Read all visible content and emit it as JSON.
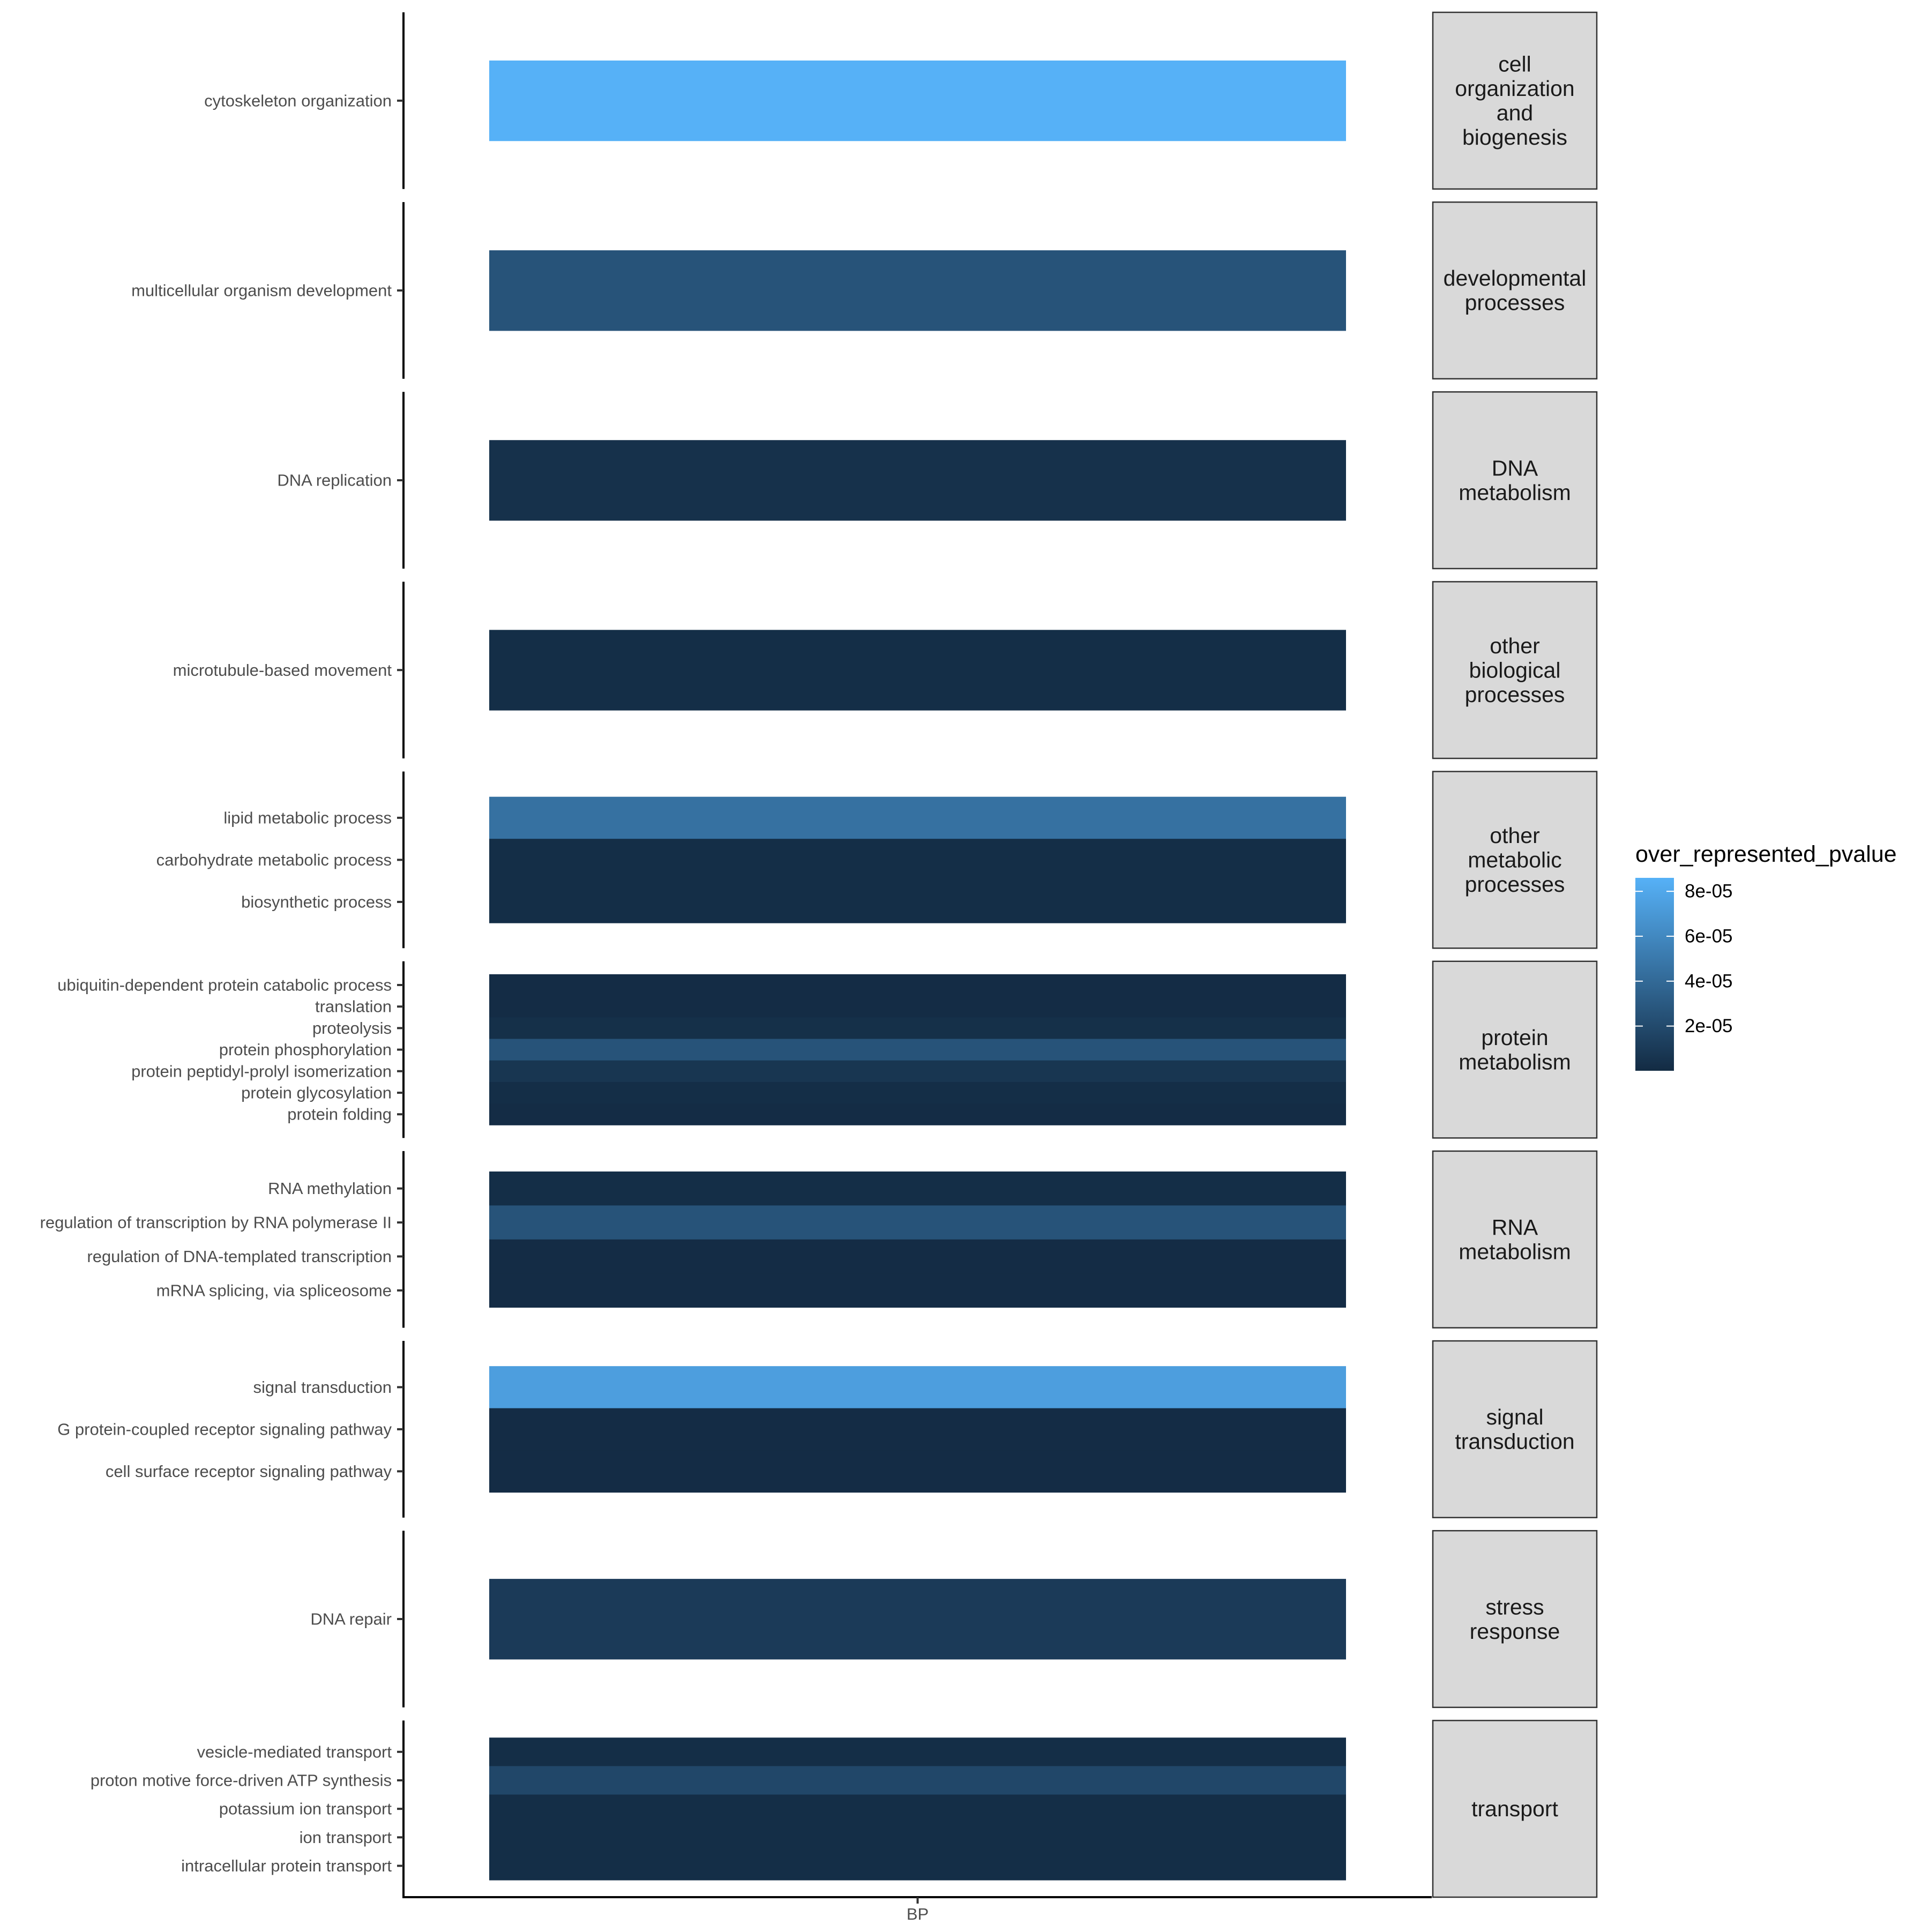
{
  "chart_data": {
    "type": "heatmap",
    "x_categories": [
      "BP"
    ],
    "colorbar": {
      "title": "over_represented_pvalue",
      "ticks": [
        "8e-05",
        "6e-05",
        "4e-05",
        "2e-05"
      ],
      "tick_values": [
        8e-05,
        6e-05,
        4e-05,
        2e-05
      ],
      "min": 1e-07,
      "max": 8.6e-05,
      "low_color": "#132B43",
      "high_color": "#56B1F7"
    },
    "facets": [
      {
        "label": "cell\norganization\nand\nbiogenesis",
        "rows": [
          {
            "term": "cytoskeleton organization",
            "value": 8.6e-05
          }
        ]
      },
      {
        "label": "developmental\nprocesses",
        "rows": [
          {
            "term": "multicellular organism development",
            "value": 2.6e-05
          }
        ]
      },
      {
        "label": "DNA\nmetabolism",
        "rows": [
          {
            "term": "DNA replication",
            "value": 4e-06
          }
        ]
      },
      {
        "label": "other\nbiological\nprocesses",
        "rows": [
          {
            "term": "microtubule-based movement",
            "value": 2e-06
          }
        ]
      },
      {
        "label": "other\nmetabolic\nprocesses",
        "rows": [
          {
            "term": "lipid metabolic process",
            "value": 4.5e-05
          },
          {
            "term": "carbohydrate metabolic process",
            "value": 2e-06
          },
          {
            "term": "biosynthetic process",
            "value": 2e-06
          }
        ]
      },
      {
        "label": "protein\nmetabolism",
        "rows": [
          {
            "term": "ubiquitin-dependent protein catabolic process",
            "value": 1e-06
          },
          {
            "term": "translation",
            "value": 1e-06
          },
          {
            "term": "proteolysis",
            "value": 3e-06
          },
          {
            "term": "protein phosphorylation",
            "value": 2.6e-05
          },
          {
            "term": "protein peptidyl-prolyl isomerization",
            "value": 7e-06
          },
          {
            "term": "protein glycosylation",
            "value": 2e-06
          },
          {
            "term": "protein folding",
            "value": 1e-06
          }
        ]
      },
      {
        "label": "RNA\nmetabolism",
        "rows": [
          {
            "term": "RNA methylation",
            "value": 2e-06
          },
          {
            "term": "regulation of transcription by RNA polymerase II",
            "value": 2.6e-05
          },
          {
            "term": "regulation of DNA-templated transcription",
            "value": 1e-06
          },
          {
            "term": "mRNA splicing, via spliceosome",
            "value": 1e-06
          }
        ]
      },
      {
        "label": "signal\ntransduction",
        "rows": [
          {
            "term": "signal transduction",
            "value": 7.4e-05
          },
          {
            "term": "G protein-coupled receptor signaling pathway",
            "value": 1e-06
          },
          {
            "term": "cell surface receptor signaling pathway",
            "value": 1e-06
          }
        ]
      },
      {
        "label": "stress\nresponse",
        "rows": [
          {
            "term": "DNA repair",
            "value": 1e-05
          }
        ]
      },
      {
        "label": "transport",
        "rows": [
          {
            "term": "vesicle-mediated transport",
            "value": 2e-06
          },
          {
            "term": "proton motive force-driven ATP synthesis",
            "value": 1.8e-05
          },
          {
            "term": "potassium ion transport",
            "value": 2e-06
          },
          {
            "term": "ion transport",
            "value": 2e-06
          },
          {
            "term": "intracellular protein transport",
            "value": 2e-06
          }
        ]
      }
    ]
  }
}
